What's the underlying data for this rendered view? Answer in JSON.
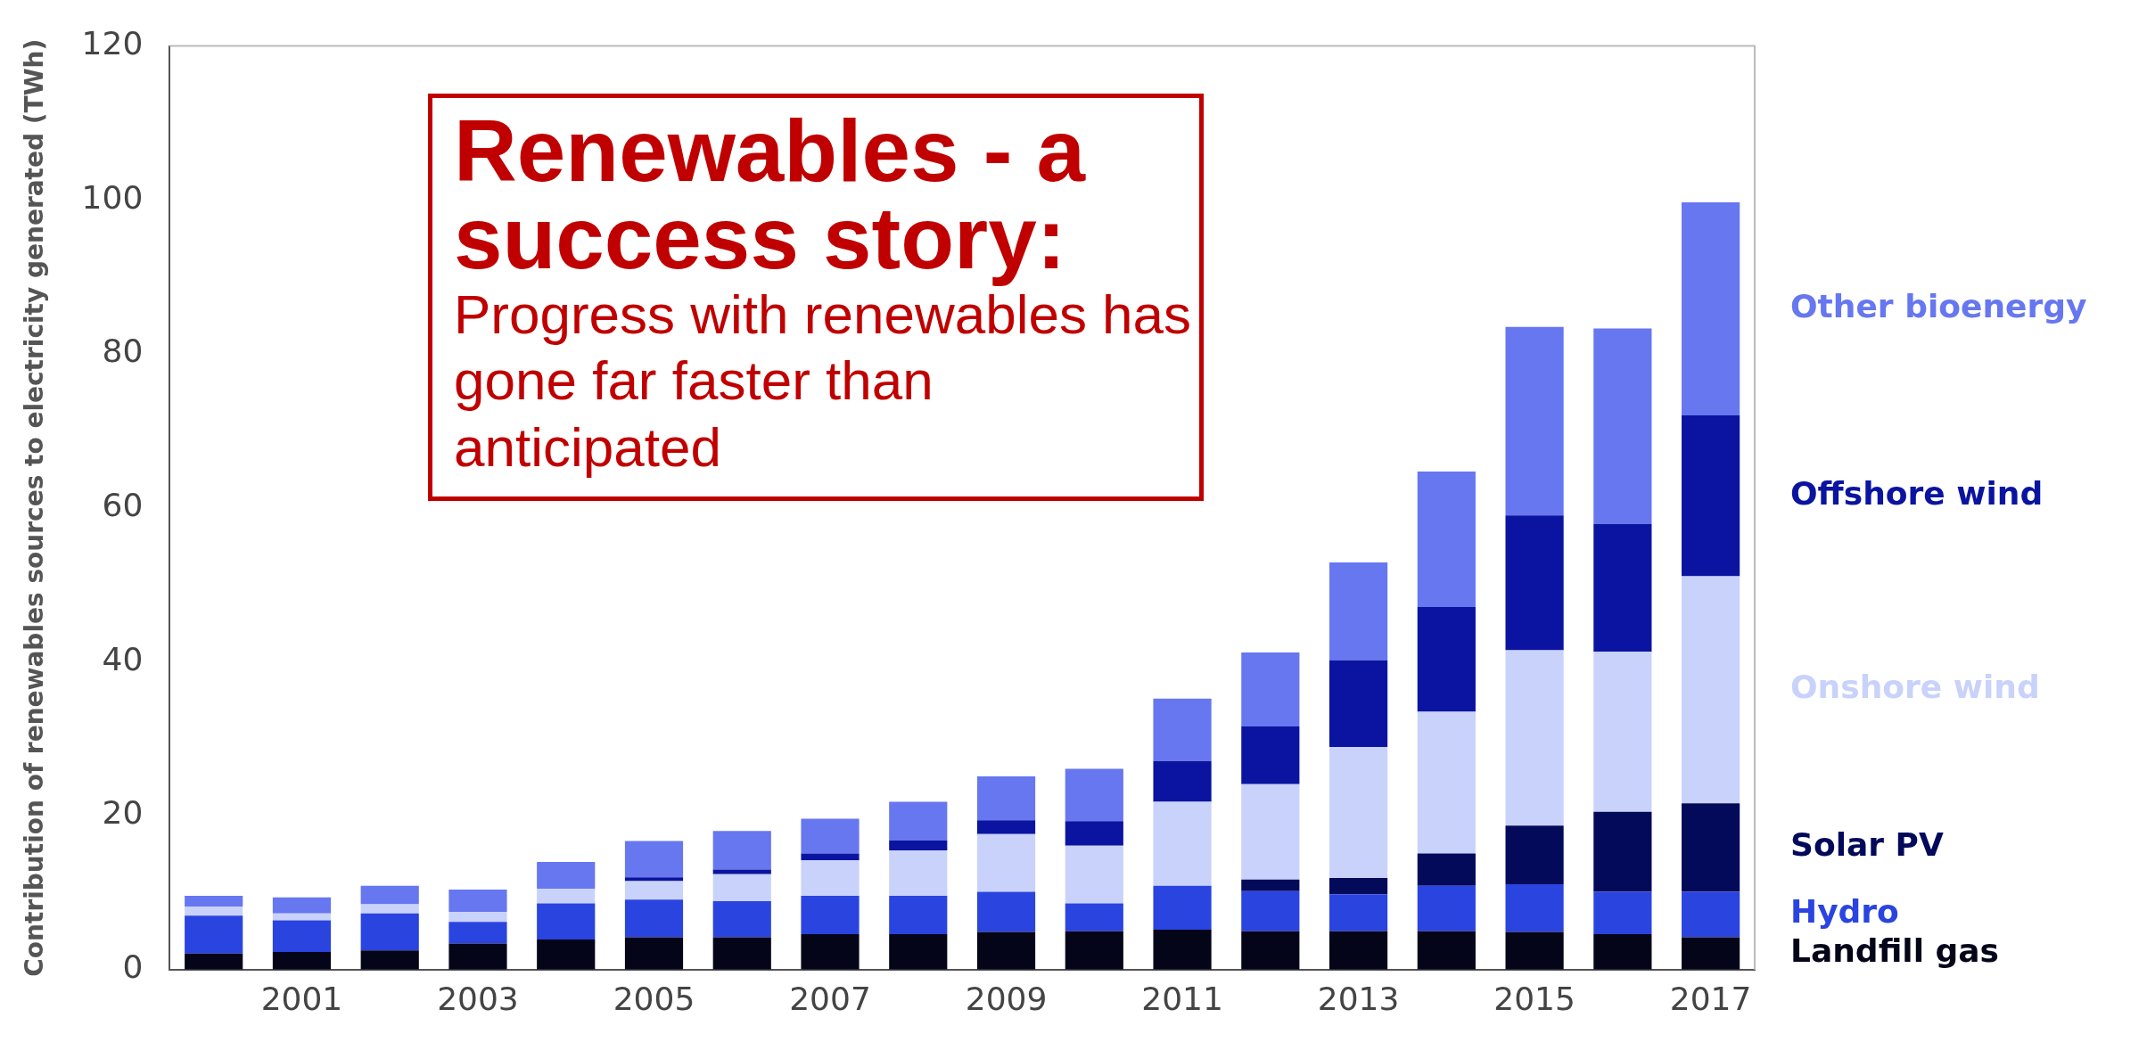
{
  "chart_data": {
    "type": "bar",
    "title": "Renewables - a success story:",
    "subtitle": "Progress with renewables has gone far faster than anticipated",
    "ylabel": "Contribution of renewables sources to electricity generated (TWh)",
    "stacked": true,
    "legend": "right",
    "grid": false,
    "categories": [
      null,
      "2001",
      null,
      "2003",
      null,
      "2005",
      null,
      "2007",
      null,
      "2009",
      null,
      "2011",
      null,
      "2013",
      null,
      "2015",
      null,
      "2017"
    ],
    "ylim": [
      0,
      120
    ],
    "yticks": [
      0,
      20,
      40,
      60,
      80,
      100,
      120
    ],
    "series": [
      {
        "name": "Landfill gas",
        "color": "#05051a",
        "values": [
          2.1,
          2.3,
          2.5,
          3.4,
          3.9,
          4.2,
          4.2,
          4.6,
          4.6,
          4.9,
          5.0,
          5.2,
          5.0,
          5.0,
          5.0,
          4.9,
          4.6,
          4.2
        ]
      },
      {
        "name": "Hydro",
        "color": "#2a44e0",
        "values": [
          4.9,
          4.1,
          4.8,
          2.8,
          4.7,
          4.9,
          4.7,
          5.0,
          5.0,
          5.2,
          3.6,
          5.7,
          5.2,
          4.8,
          5.9,
          6.2,
          5.5,
          5.9
        ]
      },
      {
        "name": "Solar PV",
        "color": "#040a5a",
        "values": [
          0,
          0,
          0,
          0,
          0,
          0,
          0,
          0,
          0,
          0,
          0,
          0,
          1.5,
          2.1,
          4.2,
          7.6,
          10.4,
          11.5
        ]
      },
      {
        "name": "Onshore wind",
        "color": "#c9d2fa",
        "values": [
          1.2,
          0.9,
          1.2,
          1.3,
          1.9,
          2.4,
          3.5,
          4.6,
          5.9,
          7.5,
          7.5,
          10.9,
          12.4,
          17.0,
          18.4,
          22.8,
          20.8,
          29.5
        ]
      },
      {
        "name": "Offshore wind",
        "color": "#0a14a0",
        "values": [
          0,
          0,
          0,
          0,
          0,
          0.5,
          0.6,
          0.9,
          1.3,
          1.8,
          3.2,
          5.3,
          7.5,
          11.3,
          13.6,
          17.5,
          16.6,
          20.9
        ]
      },
      {
        "name": "Other bioenergy",
        "color": "#6677f0",
        "values": [
          1.4,
          2.1,
          2.4,
          2.9,
          3.5,
          4.7,
          5.0,
          4.5,
          5.0,
          5.7,
          6.8,
          8.1,
          9.6,
          12.7,
          17.6,
          24.5,
          25.4,
          27.7
        ]
      }
    ]
  }
}
